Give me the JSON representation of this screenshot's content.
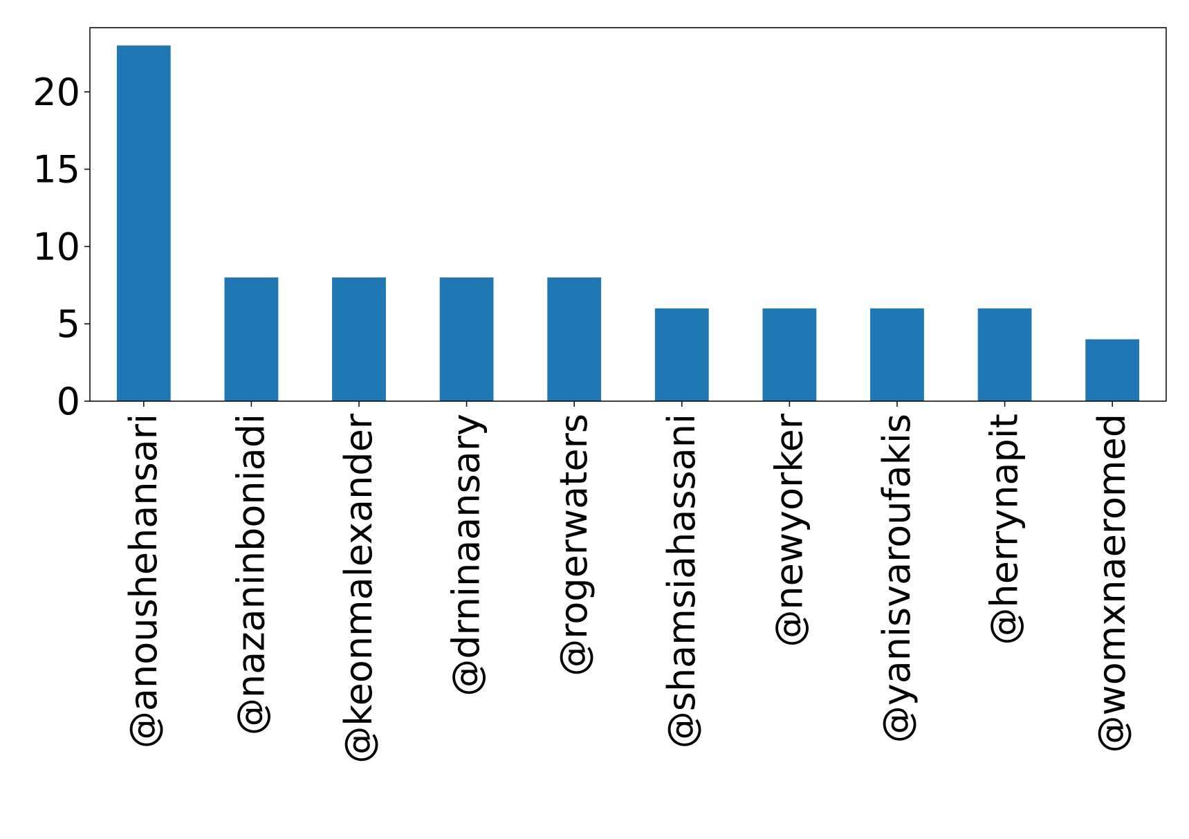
{
  "chart_data": {
    "type": "bar",
    "title": "",
    "xlabel": "",
    "ylabel": "",
    "categories": [
      "@anoushehansari",
      "@nazaninboniadi",
      "@keonmalexander",
      "@drninaansary",
      "@rogerwaters",
      "@shamsiahassani",
      "@newyorker",
      "@yanisvaroufakis",
      "@herrynapit",
      "@womxnaeromed"
    ],
    "values": [
      23,
      8,
      8,
      8,
      8,
      6,
      6,
      6,
      6,
      4
    ],
    "ylim": [
      0,
      24.15
    ],
    "yticks": [
      0,
      5,
      10,
      15,
      20
    ],
    "grid": false,
    "legend": "none",
    "bar_color": "#1f77b4"
  }
}
